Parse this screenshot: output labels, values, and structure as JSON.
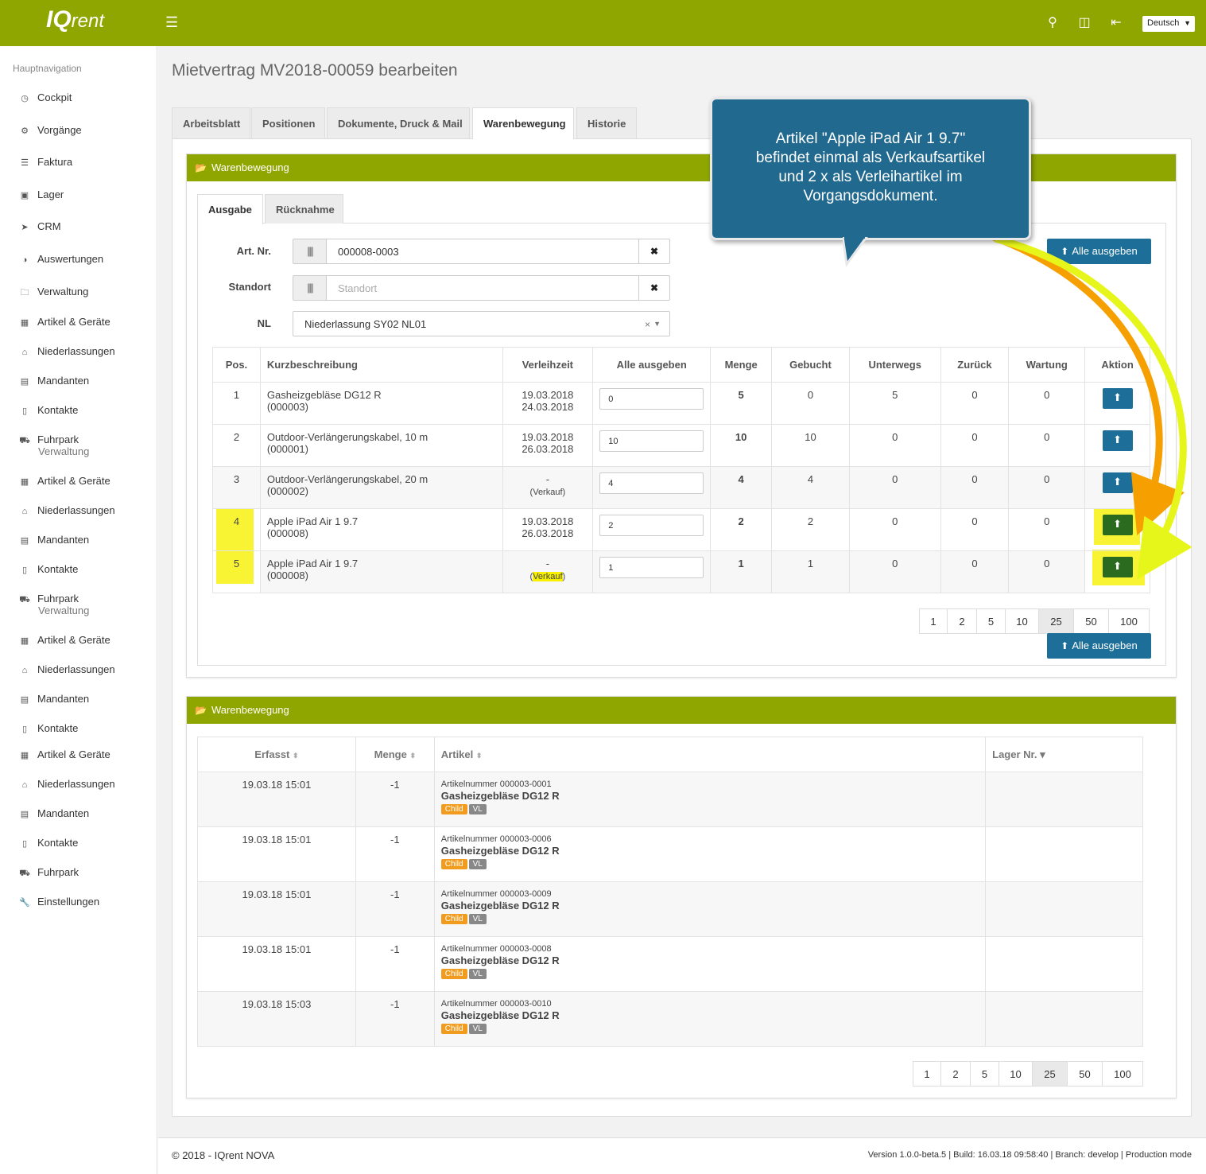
{
  "app": {
    "logo_main": "IQ",
    "logo_sub": "rent",
    "language": "Deutsch"
  },
  "sidebar": {
    "title": "Hauptnavigation",
    "items": [
      {
        "label": "Cockpit",
        "icon": "dashboard-icon"
      },
      {
        "label": "Vorgänge",
        "icon": "cogs-icon"
      },
      {
        "label": "Faktura",
        "icon": "layers-icon"
      },
      {
        "label": "Lager",
        "icon": "cubes-icon"
      },
      {
        "label": "CRM",
        "icon": "paper-plane-icon"
      },
      {
        "label": "Auswertungen",
        "icon": "pie-chart-icon"
      },
      {
        "label": "Verwaltung",
        "icon": "folder-icon"
      },
      {
        "label": "Artikel & Geräte",
        "icon": "grid-icon"
      },
      {
        "label": "Niederlassungen",
        "icon": "home-icon"
      },
      {
        "label": "Mandanten",
        "icon": "building-icon"
      },
      {
        "label": "Kontakte",
        "icon": "contact-icon"
      },
      {
        "label": "Fuhrpark",
        "icon": "car-icon"
      },
      {
        "label": "Artikel & Geräte",
        "icon": "grid-icon"
      },
      {
        "label": "Niederlassungen",
        "icon": "home-icon"
      },
      {
        "label": "Mandanten",
        "icon": "building-icon"
      },
      {
        "label": "Kontakte",
        "icon": "contact-icon"
      },
      {
        "label": "Fuhrpark",
        "icon": "car-icon"
      },
      {
        "label": "Artikel & Geräte",
        "icon": "grid-icon"
      },
      {
        "label": "Niederlassungen",
        "icon": "home-icon"
      },
      {
        "label": "Mandanten",
        "icon": "building-icon"
      },
      {
        "label": "Kontakte",
        "icon": "contact-icon"
      },
      {
        "label": "Artikel & Geräte",
        "icon": "grid-icon"
      },
      {
        "label": "Niederlassungen",
        "icon": "home-icon"
      },
      {
        "label": "Mandanten",
        "icon": "building-icon"
      },
      {
        "label": "Kontakte",
        "icon": "contact-icon"
      },
      {
        "label": "Fuhrpark",
        "icon": "car-icon"
      },
      {
        "label": "Einstellungen",
        "icon": "wrench-icon"
      }
    ],
    "ghost_label": "Verwaltung"
  },
  "page": {
    "title": "Mietvertrag MV2018-00059 bearbeiten",
    "tabs": [
      "Arbeitsblatt",
      "Positionen",
      "Dokumente, Druck & Mail",
      "Warenbewegung",
      "Historie"
    ]
  },
  "panel1": {
    "title": "Warenbewegung",
    "subtabs": [
      "Ausgabe",
      "Rücknahme"
    ],
    "form": {
      "art_nr_label": "Art. Nr.",
      "art_nr_value": "000008-0003",
      "standort_label": "Standort",
      "standort_placeholder": "Standort",
      "nl_label": "NL",
      "nl_value": "Niederlassung SY02 NL01",
      "clear_symbol": "✖"
    },
    "alle_ausgeben": "Alle ausgeben",
    "columns": [
      "Pos.",
      "Kurzbeschreibung",
      "Verleihzeit",
      "Alle ausgeben",
      "Menge",
      "Gebucht",
      "Unterwegs",
      "Zurück",
      "Wartung",
      "Aktion"
    ],
    "rows": [
      {
        "pos": "1",
        "desc": "Gasheizgebläse DG12 R",
        "code": "(000003)",
        "time1": "19.03.2018",
        "time2": "24.03.2018",
        "input": "0",
        "menge": "5",
        "gebucht": "0",
        "unterwegs": "5",
        "zurueck": "0",
        "wartung": "0"
      },
      {
        "pos": "2",
        "desc": "Outdoor-Verlängerungskabel, 10 m",
        "code": "(000001)",
        "time1": "19.03.2018",
        "time2": "26.03.2018",
        "input": "10",
        "menge": "10",
        "gebucht": "10",
        "unterwegs": "0",
        "zurueck": "0",
        "wartung": "0"
      },
      {
        "pos": "3",
        "desc": "Outdoor-Verlängerungskabel, 20 m",
        "code": "(000002)",
        "time1": "-",
        "time2": "(Verkauf)",
        "input": "4",
        "menge": "4",
        "gebucht": "4",
        "unterwegs": "0",
        "zurueck": "0",
        "wartung": "0"
      },
      {
        "pos": "4",
        "desc": "Apple iPad Air 1 9.7",
        "code": "(000008)",
        "time1": "19.03.2018",
        "time2": "26.03.2018",
        "input": "2",
        "menge": "2",
        "gebucht": "2",
        "unterwegs": "0",
        "zurueck": "0",
        "wartung": "0"
      },
      {
        "pos": "5",
        "desc": "Apple iPad Air 1 9.7",
        "code": "(000008)",
        "time1": "-",
        "time2_pre": "(",
        "time2_mark": "Verkauf",
        "time2_post": ")",
        "input": "1",
        "menge": "1",
        "gebucht": "1",
        "unterwegs": "0",
        "zurueck": "0",
        "wartung": "0"
      }
    ],
    "pager": [
      "1",
      "2",
      "5",
      "10",
      "25",
      "50",
      "100"
    ],
    "pager_active": "25"
  },
  "panel2": {
    "title": "Warenbewegung",
    "columns": [
      "Erfasst",
      "Menge",
      "Artikel",
      "Lager Nr."
    ],
    "sort_icon": "⬍",
    "sort_desc_icon": "▾",
    "nr_prefix": "Artikelnummer",
    "rows": [
      {
        "date": "19.03.18 15:01",
        "menge": "-1",
        "artnr": "000003-0001",
        "name": "Gasheizgebläse DG12 R",
        "badge1": "Child",
        "badge2": "VL"
      },
      {
        "date": "19.03.18 15:01",
        "menge": "-1",
        "artnr": "000003-0006",
        "name": "Gasheizgebläse DG12 R",
        "badge1": "Child",
        "badge2": "VL"
      },
      {
        "date": "19.03.18 15:01",
        "menge": "-1",
        "artnr": "000003-0009",
        "name": "Gasheizgebläse DG12 R",
        "badge1": "Child",
        "badge2": "VL"
      },
      {
        "date": "19.03.18 15:01",
        "menge": "-1",
        "artnr": "000003-0008",
        "name": "Gasheizgebläse DG12 R",
        "badge1": "Child",
        "badge2": "VL"
      },
      {
        "date": "19.03.18 15:03",
        "menge": "-1",
        "artnr": "000003-0010",
        "name": "Gasheizgebläse DG12 R",
        "badge1": "Child",
        "badge2": "VL"
      }
    ],
    "pager": [
      "1",
      "2",
      "5",
      "10",
      "25",
      "50",
      "100"
    ]
  },
  "callout": {
    "line1": "Artikel \"Apple iPad Air 1 9.7\"",
    "line2": "befindet einmal als Verkaufsartikel",
    "line3": "und 2 x als Verleihartikel im",
    "line4": "Vorgangsdokument."
  },
  "footer": {
    "left": "© 2018 - IQrent NOVA",
    "right": "Version 1.0.0-beta.5 | Build: 16.03.18 09:58:40 | Branch: develop | Production mode"
  },
  "colors": {
    "brand_green": "#8fa600",
    "primary_blue": "#1d6f99",
    "highlight_yellow": "#f7f100",
    "arrow_orange": "#f5a000",
    "arrow_yellow": "#e6f51a",
    "badge_child": "#f29c1f",
    "badge_vl": "#888888"
  }
}
